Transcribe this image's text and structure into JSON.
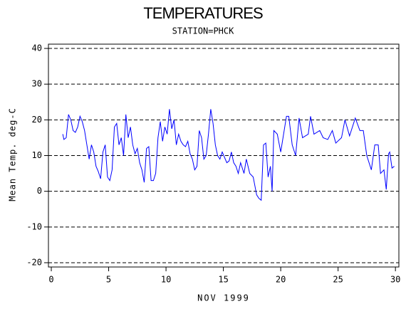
{
  "chart_data": {
    "type": "line",
    "title": "TEMPERATURES",
    "subtitle": "STATION=PHCK",
    "x_label": "NOV 1999",
    "y_label": "Mean Temp. deg-C",
    "xlim": [
      -0.25,
      30.3
    ],
    "ylim": [
      -21.2,
      41.2
    ],
    "xticks": [
      0,
      5,
      10,
      15,
      20,
      25,
      30
    ],
    "yticks": [
      -20,
      -10,
      0,
      10,
      20,
      30,
      40
    ],
    "grid": true,
    "grid_style": "dashed",
    "series": [
      {
        "name": "Mean Temp",
        "color": "#0000ff",
        "x": [
          1,
          1.1,
          1.3,
          1.5,
          1.7,
          1.9,
          2.1,
          2.3,
          2.5,
          2.7,
          2.9,
          3.1,
          3.3,
          3.5,
          3.7,
          3.9,
          4.1,
          4.3,
          4.5,
          4.7,
          4.9,
          5.1,
          5.3,
          5.5,
          5.7,
          5.9,
          6.1,
          6.3,
          6.5,
          6.7,
          6.9,
          7.1,
          7.3,
          7.5,
          7.7,
          7.9,
          8.1,
          8.3,
          8.5,
          8.7,
          8.9,
          9.1,
          9.3,
          9.5,
          9.7,
          9.9,
          10.1,
          10.3,
          10.5,
          10.7,
          10.9,
          11.1,
          11.3,
          11.5,
          11.7,
          11.9,
          12.1,
          12.3,
          12.5,
          12.7,
          12.9,
          13.1,
          13.3,
          13.5,
          13.7,
          13.9,
          14.1,
          14.3,
          14.5,
          14.7,
          14.9,
          15.1,
          15.3,
          15.5,
          15.7,
          15.9,
          16.1,
          16.3,
          16.5,
          16.8,
          17.0,
          17.3,
          17.6,
          17.9,
          18.1,
          18.3,
          18.5,
          18.7,
          18.9,
          19.1,
          19.25,
          19.4,
          19.7,
          20.0,
          20.5,
          20.7,
          21.0,
          21.3,
          21.6,
          21.9,
          22.4,
          22.6,
          22.9,
          23.4,
          23.7,
          24.1,
          24.5,
          24.8,
          25.3,
          25.6,
          26.0,
          26.5,
          26.9,
          27.2,
          27.5,
          27.9,
          28.2,
          28.5,
          28.7,
          29.0,
          29.2,
          29.4,
          29.5,
          29.7,
          29.9
        ],
        "values": [
          16,
          14.5,
          15,
          21.5,
          20,
          17,
          16.5,
          18,
          21,
          19.5,
          17,
          13,
          9,
          13,
          11,
          7,
          5.5,
          3.5,
          11,
          13,
          4,
          3,
          6,
          18,
          19,
          13,
          15,
          10,
          21.5,
          15,
          18,
          13,
          10.5,
          12,
          8,
          6,
          2.5,
          12,
          12.5,
          3,
          3,
          5,
          15,
          19.5,
          14,
          18,
          16,
          23,
          17.5,
          20,
          13,
          16,
          14,
          13,
          12.5,
          14,
          10.5,
          9,
          6,
          7,
          17,
          15,
          9,
          10,
          16,
          23,
          19,
          13,
          10,
          9,
          11,
          9.5,
          8,
          8.5,
          11,
          8,
          7,
          5,
          8,
          5,
          9,
          5,
          4,
          -1,
          -2,
          -2.5,
          13,
          13.5,
          4,
          7,
          0,
          17,
          16,
          11,
          21,
          21,
          13,
          10,
          20.5,
          15,
          16,
          21,
          16,
          17,
          15,
          14.5,
          17,
          13.5,
          15,
          20,
          15.5,
          20.5,
          17,
          17,
          10,
          6,
          13,
          13,
          5,
          6,
          0.5,
          10.5,
          11,
          6.5,
          7
        ]
      }
    ]
  }
}
